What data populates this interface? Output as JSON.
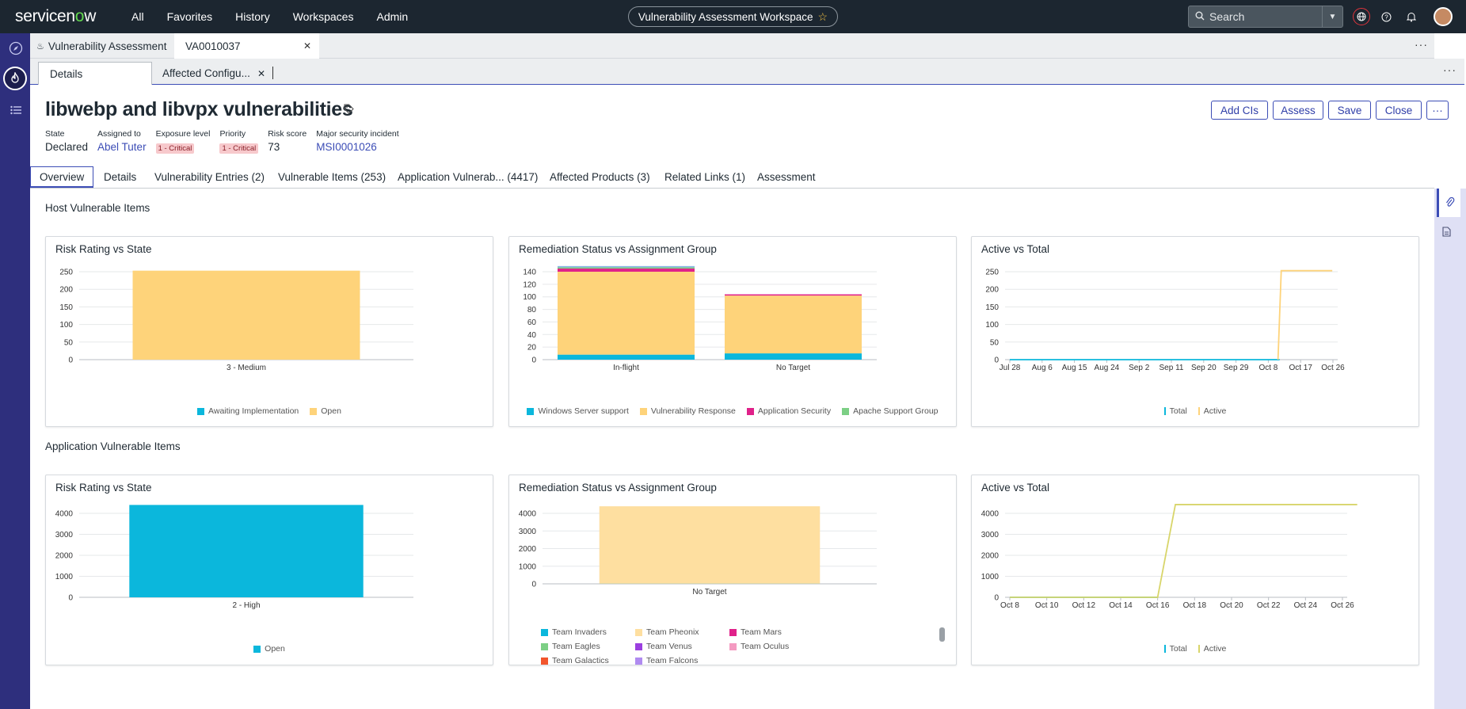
{
  "topnav": {
    "logo_prefix": "servicen",
    "logo_o": "o",
    "logo_suffix": "w",
    "items": [
      "All",
      "Favorites",
      "History",
      "Workspaces",
      "Admin"
    ],
    "workspace_title": "Vulnerability Assessment Workspace",
    "search_placeholder": "Search"
  },
  "tabs_primary": [
    {
      "label": "Vulnerability Assessment"
    },
    {
      "label": "VA0010037"
    }
  ],
  "tabs_secondary": [
    {
      "label": "Details"
    },
    {
      "label": "Affected Configu..."
    }
  ],
  "record": {
    "title": "libwebp and libvpx vulnerabilities",
    "fields": [
      {
        "label": "State",
        "value": "Declared"
      },
      {
        "label": "Assigned to",
        "value": "Abel Tuter"
      },
      {
        "label": "Exposure level",
        "value": "1 - Critical"
      },
      {
        "label": "Priority",
        "value": "1 - Critical"
      },
      {
        "label": "Risk score",
        "value": "73"
      },
      {
        "label": "Major security incident",
        "value": "MSI0001026"
      }
    ],
    "actions": [
      "Add CIs",
      "Assess",
      "Save",
      "Close"
    ]
  },
  "subtabs": [
    "Overview",
    "Details",
    "Vulnerability Entries (2)",
    "Vulnerable Items (253)",
    "Application Vulnerab... (4417)",
    "Affected Products (3)",
    "Related Links (1)",
    "Assessment"
  ],
  "sections": {
    "host": "Host Vulnerable Items",
    "app": "Application Vulnerable Items"
  },
  "colors": {
    "cyan": "#0bb7dc",
    "yellow": "#fed37a",
    "magenta": "#e0218a",
    "green": "#7ccf85",
    "accent": "#3c4db6"
  },
  "chart_data": [
    {
      "id": "host-risk",
      "type": "bar",
      "title": "Risk Rating vs State",
      "categories": [
        "3 - Medium"
      ],
      "ylim": [
        0,
        250
      ],
      "yticks": [
        0,
        50,
        100,
        150,
        200,
        250
      ],
      "series": [
        {
          "name": "Awaiting Implementation",
          "color": "#0bb7dc",
          "values": [
            0
          ]
        },
        {
          "name": "Open",
          "color": "#fed37a",
          "values": [
            253
          ]
        }
      ]
    },
    {
      "id": "host-remediation",
      "type": "bar",
      "title": "Remediation Status vs Assignment Group",
      "categories": [
        "In-flight",
        "No Target"
      ],
      "ylim": [
        0,
        140
      ],
      "yticks": [
        0,
        20,
        40,
        60,
        80,
        100,
        120,
        140
      ],
      "series": [
        {
          "name": "Windows Server support",
          "color": "#0bb7dc",
          "values": [
            8,
            10
          ]
        },
        {
          "name": "Vulnerability Response",
          "color": "#fed37a",
          "values": [
            132,
            92
          ]
        },
        {
          "name": "Application Security",
          "color": "#e0218a",
          "values": [
            5,
            2
          ]
        },
        {
          "name": "Apache Support Group",
          "color": "#7ccf85",
          "values": [
            2,
            0
          ]
        }
      ],
      "extra_top": [
        {
          "color": "#8ab4e8",
          "values": [
            2,
            0
          ]
        }
      ]
    },
    {
      "id": "host-active",
      "type": "line",
      "title": "Active vs Total",
      "x": [
        "Jul 28",
        "Aug 6",
        "Aug 15",
        "Aug 24",
        "Sep 2",
        "Sep 11",
        "Sep 20",
        "Sep 29",
        "Oct 8",
        "Oct 17",
        "Oct 26"
      ],
      "ylim": [
        0,
        250
      ],
      "yticks": [
        0,
        50,
        100,
        150,
        200,
        250
      ],
      "series": [
        {
          "name": "Total",
          "color": "#0bb7dc",
          "points": [
            [
              0,
              0
            ],
            [
              8.3,
              0
            ],
            [
              8.35,
              0
            ]
          ]
        },
        {
          "name": "Active",
          "color": "#fed37a",
          "points": [
            [
              8.3,
              0
            ],
            [
              8.4,
              253
            ],
            [
              9.98,
              253
            ]
          ]
        }
      ]
    },
    {
      "id": "app-risk",
      "type": "bar",
      "title": "Risk Rating vs State",
      "categories": [
        "2 - High"
      ],
      "ylim": [
        0,
        4000
      ],
      "yticks": [
        0,
        1000,
        2000,
        3000,
        4000
      ],
      "series": [
        {
          "name": "Open",
          "color": "#0bb7dc",
          "values": [
            4417
          ]
        }
      ]
    },
    {
      "id": "app-remediation",
      "type": "bar",
      "title": "Remediation Status vs Assignment Group",
      "categories": [
        "No Target"
      ],
      "ylim": [
        0,
        4000
      ],
      "yticks": [
        0,
        1000,
        2000,
        3000,
        4000
      ],
      "series": [
        {
          "name": "Team Invaders",
          "color": "#0bb7dc",
          "values": [
            10
          ]
        },
        {
          "name": "Team Pheonix",
          "color": "#fedfa0",
          "values": [
            4407
          ]
        },
        {
          "name": "Team Mars",
          "color": "#e0218a",
          "values": [
            0
          ]
        },
        {
          "name": "Team Eagles",
          "color": "#7ccf85",
          "values": [
            0
          ]
        },
        {
          "name": "Team Venus",
          "color": "#9b3fe0",
          "values": [
            0
          ]
        },
        {
          "name": "Team Oculus",
          "color": "#f49ac1",
          "values": [
            0
          ]
        },
        {
          "name": "Team Galactics",
          "color": "#f2552c",
          "values": [
            0
          ]
        },
        {
          "name": "Team Falcons",
          "color": "#b08bf0",
          "values": [
            0
          ]
        }
      ]
    },
    {
      "id": "app-active",
      "type": "line",
      "title": "Active vs Total",
      "x": [
        "Oct 8",
        "Oct 10",
        "Oct 12",
        "Oct 14",
        "Oct 16",
        "Oct 18",
        "Oct 20",
        "Oct 22",
        "Oct 24",
        "Oct 26"
      ],
      "ylim": [
        0,
        4000
      ],
      "yticks": [
        0,
        1000,
        2000,
        3000,
        4000
      ],
      "series": [
        {
          "name": "Total",
          "color": "#0bb7dc",
          "points": [
            [
              0,
              0
            ],
            [
              4.0,
              0
            ]
          ]
        },
        {
          "name": "Active",
          "color": "#d8d56a",
          "points": [
            [
              0,
              0
            ],
            [
              4.0,
              0
            ],
            [
              4.48,
              4417
            ],
            [
              9.4,
              4417
            ]
          ]
        }
      ]
    }
  ]
}
